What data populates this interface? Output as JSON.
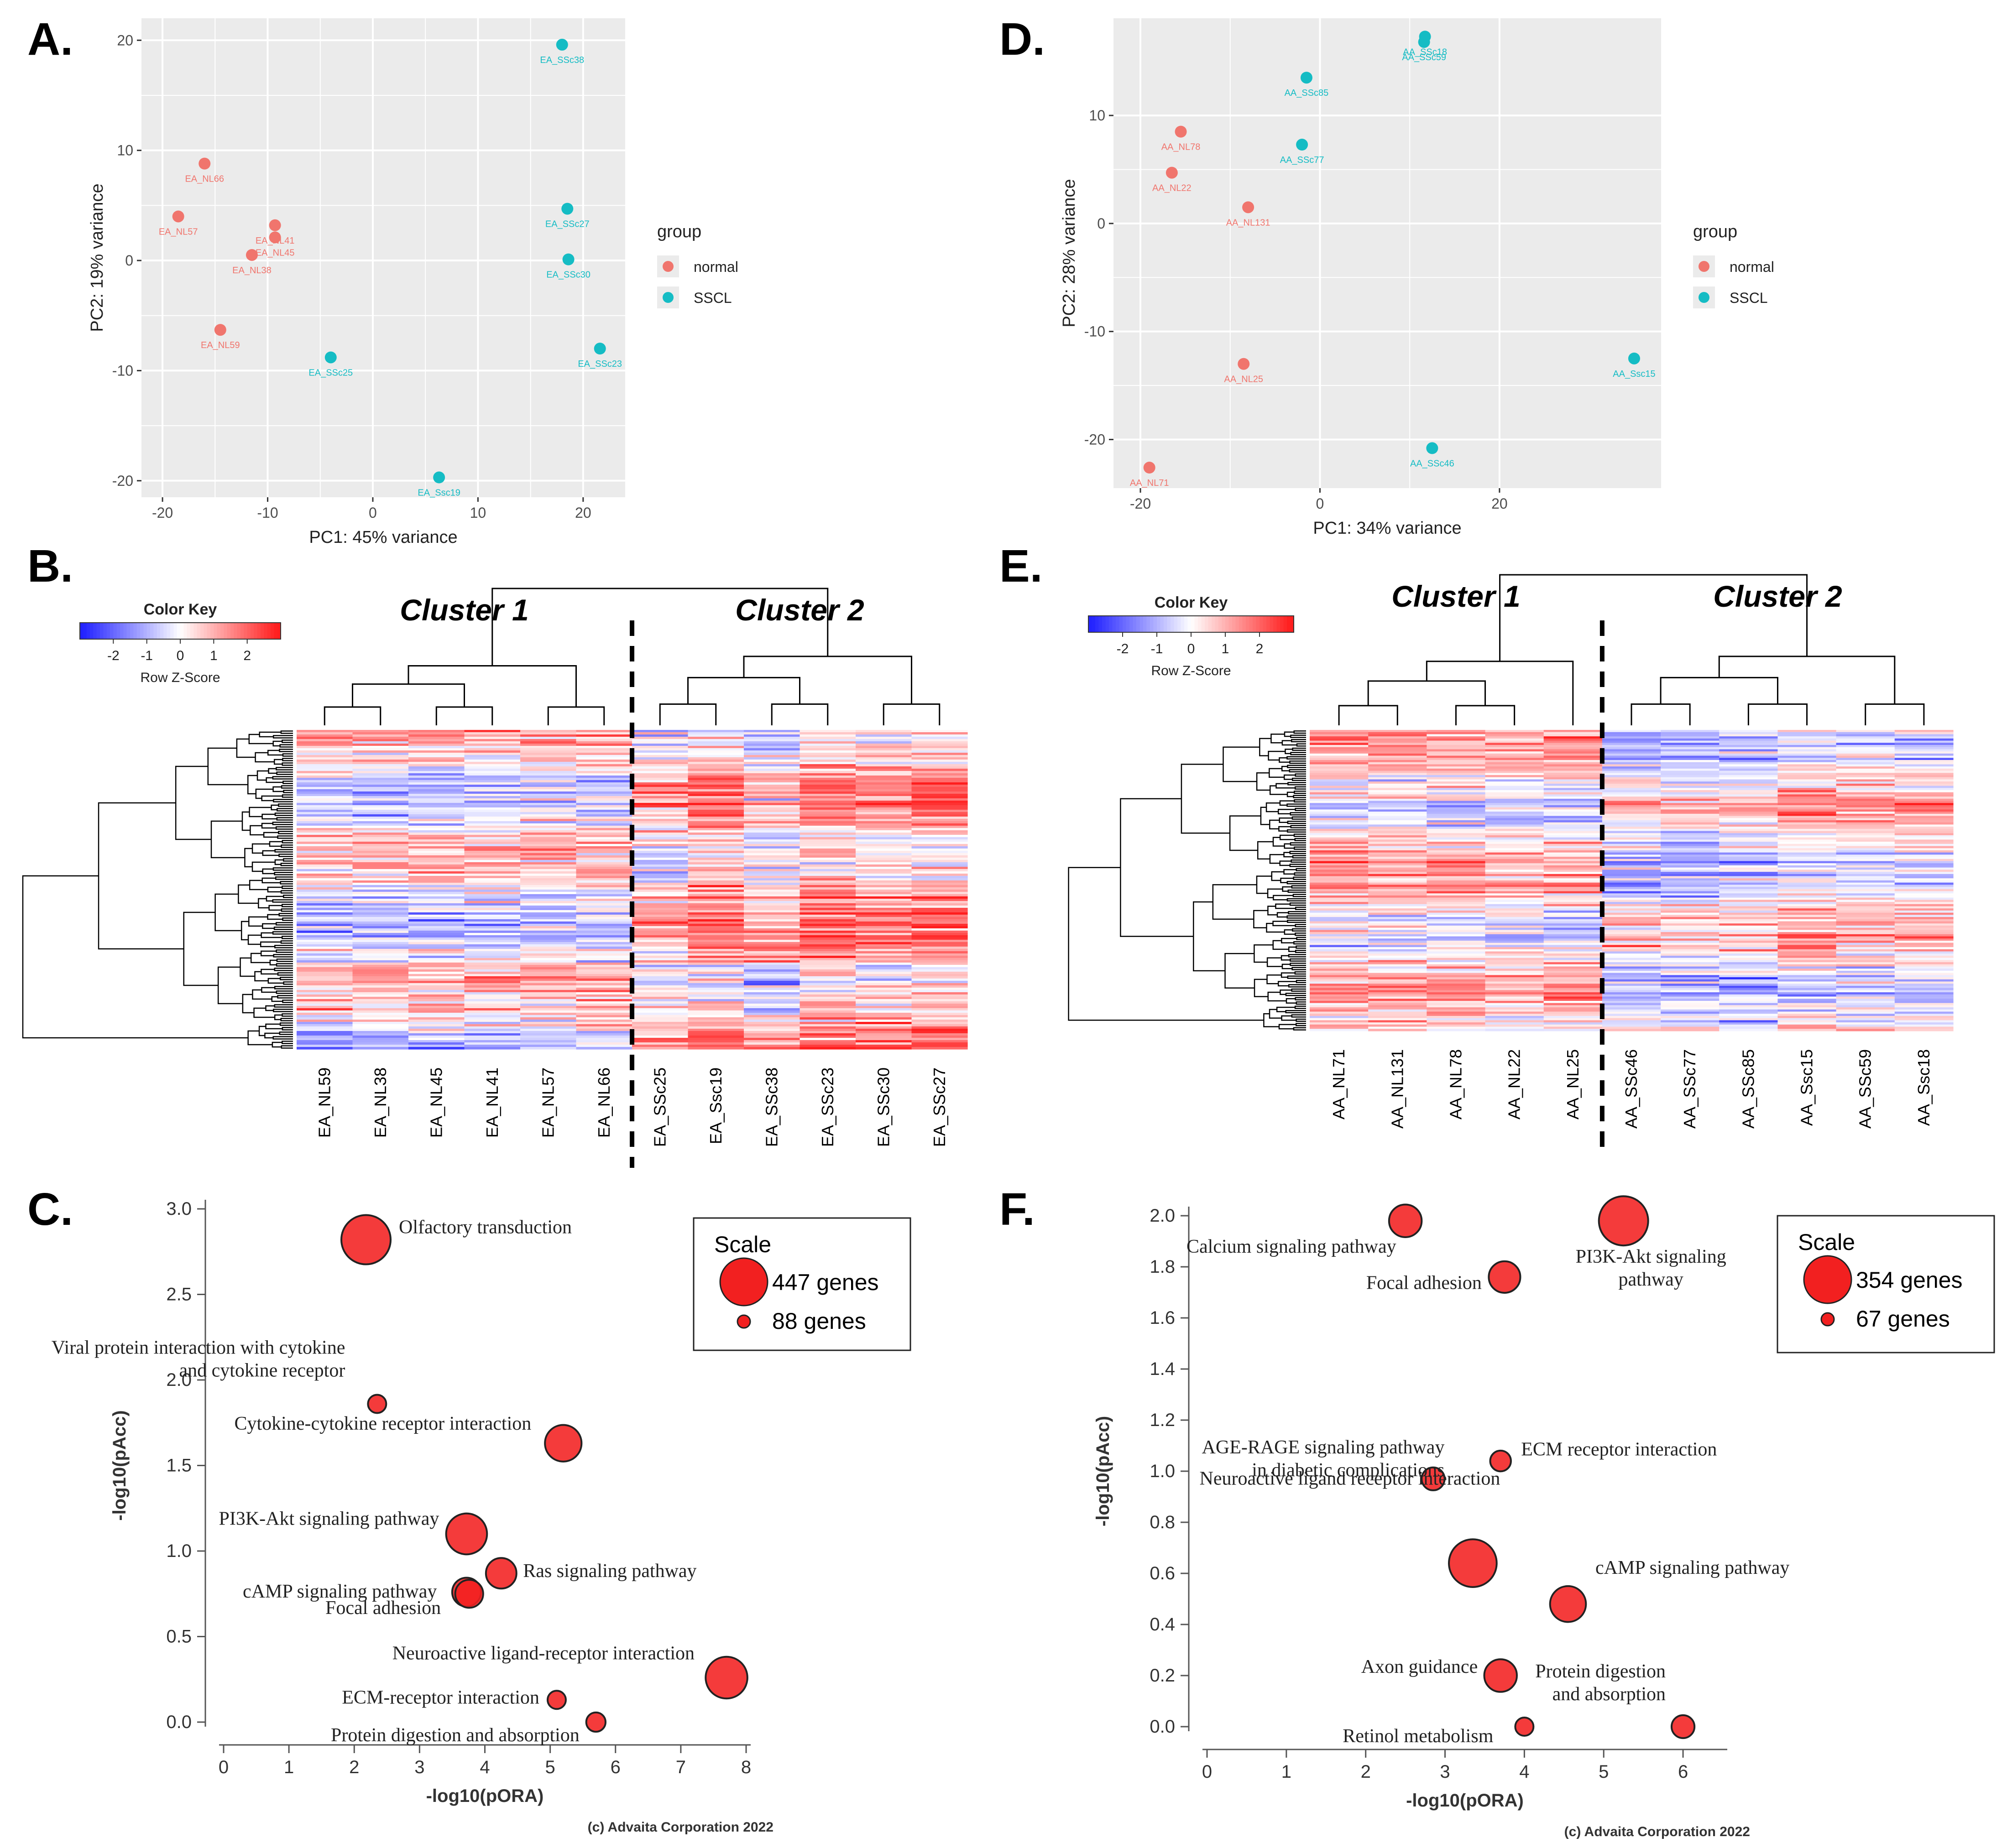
{
  "colors": {
    "normal": "#f0756d",
    "sscl": "#15bcc4",
    "panel_bg": "#ebebeb",
    "heat_low": "#2323ff",
    "heat_mid": "#ffffff",
    "heat_high": "#ff1f1f",
    "bubble": "#f22020",
    "text_pca_grey": "#4d4d4d"
  },
  "panel_labels": {
    "A": "A.",
    "B": "B.",
    "C": "C.",
    "D": "D.",
    "E": "E.",
    "F": "F."
  },
  "chart_data": [
    {
      "id": "A",
      "type": "scatter",
      "title": "",
      "xlabel": "PC1: 45% variance",
      "ylabel": "PC2: 19% variance",
      "xlim": [
        -22,
        24
      ],
      "ylim": [
        -21.5,
        22
      ],
      "xticks": [
        -20,
        -10,
        0,
        10,
        20
      ],
      "yticks": [
        -20,
        -10,
        0,
        10,
        20
      ],
      "legend": {
        "title": "group",
        "entries": [
          "normal",
          "SSCL"
        ],
        "placement": "right"
      },
      "series": [
        {
          "name": "normal",
          "points": [
            {
              "label": "EA_NL66",
              "x": -16,
              "y": 8.8
            },
            {
              "label": "EA_NL57",
              "x": -18.5,
              "y": 4
            },
            {
              "label": "EA_NL41",
              "x": -9.3,
              "y": 3.2
            },
            {
              "label": "EA_NL45",
              "x": -9.3,
              "y": 2.1
            },
            {
              "label": "EA_NL38",
              "x": -11.5,
              "y": 0.5
            },
            {
              "label": "EA_NL59",
              "x": -14.5,
              "y": -6.3
            }
          ]
        },
        {
          "name": "SSCL",
          "points": [
            {
              "label": "EA_SSc38",
              "x": 18,
              "y": 19.6
            },
            {
              "label": "EA_SSc27",
              "x": 18.5,
              "y": 4.7
            },
            {
              "label": "EA_SSc30",
              "x": 18.6,
              "y": 0.1
            },
            {
              "label": "EA_SSc23",
              "x": 21.6,
              "y": -8
            },
            {
              "label": "EA_SSc25",
              "x": -4,
              "y": -8.8
            },
            {
              "label": "EA_Ssc19",
              "x": 6.3,
              "y": -19.7
            }
          ]
        }
      ]
    },
    {
      "id": "D",
      "type": "scatter",
      "title": "",
      "xlabel": "PC1: 34% variance",
      "ylabel": "PC2: 28% variance",
      "xlim": [
        -23,
        38
      ],
      "ylim": [
        -24.5,
        19
      ],
      "xticks": [
        -20,
        0,
        20
      ],
      "yticks": [
        -20,
        -10,
        0,
        10
      ],
      "legend": {
        "title": "group",
        "entries": [
          "normal",
          "SSCL"
        ],
        "placement": "right"
      },
      "series": [
        {
          "name": "normal",
          "points": [
            {
              "label": "AA_NL78",
              "x": -15.5,
              "y": 8.5
            },
            {
              "label": "AA_NL22",
              "x": -16.5,
              "y": 4.7
            },
            {
              "label": "AA_NL131",
              "x": -8,
              "y": 1.5
            },
            {
              "label": "AA_NL25",
              "x": -8.5,
              "y": -13
            },
            {
              "label": "AA_NL71",
              "x": -19,
              "y": -22.6
            }
          ]
        },
        {
          "name": "SSCL",
          "points": [
            {
              "label": "AA_SSc18",
              "x": 11.7,
              "y": 17.3
            },
            {
              "label": "AA_SSc59",
              "x": 11.6,
              "y": 16.8
            },
            {
              "label": "AA_SSc85",
              "x": -1.5,
              "y": 13.5
            },
            {
              "label": "AA_SSc77",
              "x": -2,
              "y": 7.3
            },
            {
              "label": "AA_Ssc15",
              "x": 35,
              "y": -12.5
            },
            {
              "label": "AA_SSc46",
              "x": 12.5,
              "y": -20.8
            }
          ]
        }
      ]
    },
    {
      "id": "B",
      "type": "heatmap",
      "title": "",
      "color_key": {
        "title": "Color Key",
        "label": "Row Z-Score",
        "ticks": [
          "-2",
          "-1",
          "0",
          "1",
          "2"
        ],
        "range": [
          -3,
          3
        ]
      },
      "clusters": [
        "Cluster 1",
        "Cluster 2"
      ],
      "columns": [
        "EA_NL59",
        "EA_NL38",
        "EA_NL45",
        "EA_NL41",
        "EA_NL57",
        "EA_NL66",
        "EA_SSc25",
        "EA_Ssc19",
        "EA_SSc38",
        "EA_SSc23",
        "EA_SSc30",
        "EA_SSc27"
      ],
      "column_tendency": [
        0,
        0,
        0,
        0,
        0.05,
        0.05,
        0.1,
        0.25,
        0.05,
        0.25,
        0.2,
        0.25
      ],
      "split_after": 6
    },
    {
      "id": "E",
      "type": "heatmap",
      "title": "",
      "color_key": {
        "title": "Color Key",
        "label": "Row Z-Score",
        "ticks": [
          "-2",
          "-1",
          "0",
          "1",
          "2"
        ],
        "range": [
          -3,
          3
        ]
      },
      "clusters": [
        "Cluster 1",
        "Cluster 2"
      ],
      "columns": [
        "AA_NL71",
        "AA_NL131",
        "AA_NL78",
        "AA_NL22",
        "AA_NL25",
        "AA_SSc46",
        "AA_SSc77",
        "AA_SSc85",
        "AA_Ssc15",
        "AA_SSc59",
        "AA_Ssc18"
      ],
      "column_tendency": [
        0.15,
        0.1,
        0.1,
        0.05,
        0.1,
        -0.05,
        -0.05,
        -0.05,
        0.1,
        0.05,
        0.05
      ],
      "split_after": 5
    },
    {
      "id": "C",
      "type": "scatter",
      "subtype": "bubble",
      "title": "",
      "xlabel": "-log10(pORA)",
      "ylabel": "-log10(pAcc)",
      "xlim": [
        0,
        8
      ],
      "ylim": [
        0,
        3
      ],
      "xticks": [
        0,
        1,
        2,
        3,
        4,
        5,
        6,
        7,
        8
      ],
      "yticks": [
        "0.0",
        "0.5",
        "1.0",
        "1.5",
        "2.0",
        "2.5",
        "3.0"
      ],
      "scale_legend": {
        "title": "Scale",
        "max_label": "447 genes",
        "min_label": "88 genes",
        "max_genes": 447,
        "min_genes": 88
      },
      "copyright": "(c) Advaita Corporation 2022",
      "points": [
        {
          "label": "Olfactory transduction",
          "x": 2.18,
          "y": 2.82,
          "genes": 447
        },
        {
          "label": "Viral protein interaction with cytokine|and cytokine receptor",
          "x": 2.35,
          "y": 1.86,
          "genes": 88
        },
        {
          "label": "Cytokine-cytokine receptor interaction",
          "x": 5.2,
          "y": 1.63,
          "genes": 300
        },
        {
          "label": "PI3K-Akt signaling pathway",
          "x": 3.72,
          "y": 1.1,
          "genes": 350
        },
        {
          "label": "Ras signaling pathway",
          "x": 4.25,
          "y": 0.87,
          "genes": 230
        },
        {
          "label": "cAMP signaling pathway",
          "x": 3.72,
          "y": 0.76,
          "genes": 210
        },
        {
          "label": "Focal adhesion",
          "x": 3.76,
          "y": 0.75,
          "genes": 200
        },
        {
          "label": "Neuroactive ligand-receptor interaction",
          "x": 7.7,
          "y": 0.26,
          "genes": 360
        },
        {
          "label": "ECM-receptor interaction",
          "x": 5.1,
          "y": 0.13,
          "genes": 88
        },
        {
          "label": "Protein digestion and absorption",
          "x": 5.7,
          "y": 0.0,
          "genes": 100
        }
      ]
    },
    {
      "id": "F",
      "type": "scatter",
      "subtype": "bubble",
      "title": "",
      "xlabel": "-log10(pORA)",
      "ylabel": "-log10(pAcc)",
      "xlim": [
        0,
        6.5
      ],
      "ylim": [
        0,
        2
      ],
      "xticks": [
        0,
        1,
        2,
        3,
        4,
        5,
        6
      ],
      "yticks": [
        "0.0",
        "0.2",
        "0.4",
        "0.6",
        "0.8",
        "1.0",
        "1.2",
        "1.4",
        "1.6",
        "1.8",
        "2.0"
      ],
      "scale_legend": {
        "title": "Scale",
        "max_label": "354 genes",
        "min_label": "67 genes",
        "max_genes": 354,
        "min_genes": 67
      },
      "copyright": "(c) Advaita Corporation 2022",
      "points": [
        {
          "label": "Calcium signaling pathway",
          "x": 2.5,
          "y": 1.98,
          "genes": 200
        },
        {
          "label": "PI3K-Akt signaling|pathway",
          "x": 5.25,
          "y": 1.98,
          "genes": 354
        },
        {
          "label": "Focal adhesion",
          "x": 3.75,
          "y": 1.76,
          "genes": 190
        },
        {
          "label": "AGE-RAGE signaling pathway|in diabetic complications",
          "x": 2.85,
          "y": 0.97,
          "genes": 110
        },
        {
          "label": "ECM receptor interaction",
          "x": 3.7,
          "y": 1.04,
          "genes": 90
        },
        {
          "label": "Neuroactive ligand receptor interaction",
          "x": 3.35,
          "y": 0.64,
          "genes": 340
        },
        {
          "label": "cAMP signaling pathway",
          "x": 4.55,
          "y": 0.48,
          "genes": 230
        },
        {
          "label": "Axon guidance",
          "x": 3.7,
          "y": 0.2,
          "genes": 200
        },
        {
          "label": "Protein digestion|and absorption",
          "x": 6.0,
          "y": 0.0,
          "genes": 110
        },
        {
          "label": "Retinol metabolism",
          "x": 4.0,
          "y": 0.0,
          "genes": 67
        }
      ]
    }
  ]
}
